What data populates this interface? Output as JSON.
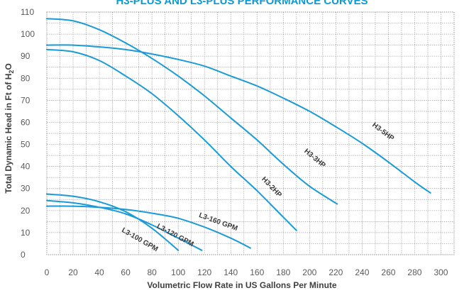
{
  "chart_data": {
    "type": "line",
    "title": "H3-PLUS AND L3-PLUS PERFORMANCE CURVES",
    "xlabel": "Volumetric Flow Rate in US Gallons Per Minute",
    "ylabel_main": "Total Dynamic Head in Ft of H",
    "ylabel_sub": "2",
    "ylabel_tail": "O",
    "xlim": [
      0,
      310
    ],
    "ylim": [
      0,
      110
    ],
    "xticks": [
      "0",
      "20",
      "40",
      "60",
      "80",
      "100",
      "120",
      "140",
      "160",
      "180",
      "200",
      "220",
      "240",
      "260",
      "280",
      "300"
    ],
    "yticks": [
      "0",
      "10",
      "20",
      "30",
      "40",
      "50",
      "60",
      "70",
      "80",
      "90",
      "100",
      "110"
    ],
    "grid": true,
    "curve_color": "#1a9ad7",
    "series": [
      {
        "name": "H3-5HP",
        "x": [
          0,
          20,
          40,
          60,
          80,
          100,
          120,
          140,
          160,
          180,
          200,
          220,
          240,
          260,
          280,
          292
        ],
        "y": [
          95,
          95,
          94.2,
          93,
          91,
          88.5,
          85.5,
          81,
          76.5,
          71,
          65,
          58,
          50.5,
          42,
          33,
          28
        ]
      },
      {
        "name": "H3-3HP",
        "x": [
          0,
          20,
          40,
          60,
          80,
          100,
          120,
          140,
          160,
          180,
          200,
          221
        ],
        "y": [
          107,
          106,
          102,
          96,
          89,
          81,
          72,
          62,
          52,
          41,
          31,
          23
        ]
      },
      {
        "name": "H3-2HP",
        "x": [
          0,
          20,
          40,
          60,
          80,
          100,
          120,
          140,
          160,
          180,
          190
        ],
        "y": [
          93,
          92,
          88,
          81,
          73,
          63,
          52,
          40,
          29,
          17,
          11
        ]
      },
      {
        "name": "L3-160 GPM",
        "x": [
          0,
          20,
          40,
          60,
          80,
          100,
          120,
          140,
          155
        ],
        "y": [
          22,
          22,
          21.5,
          20.5,
          18.8,
          16.5,
          12.5,
          7.5,
          3
        ]
      },
      {
        "name": "L3-120 GPM",
        "x": [
          0,
          20,
          40,
          60,
          80,
          100,
          118
        ],
        "y": [
          24.5,
          23.5,
          21.5,
          18.5,
          13.5,
          7.5,
          2
        ]
      },
      {
        "name": "L3-100 GPM",
        "x": [
          0,
          20,
          40,
          60,
          80,
          100
        ],
        "y": [
          27.5,
          26.5,
          24,
          19.5,
          12,
          2
        ]
      }
    ],
    "labels": [
      {
        "text": "H3-5HP",
        "x": 255,
        "y": 55,
        "angle": 37
      },
      {
        "text": "H3-3HP",
        "x": 203,
        "y": 43,
        "angle": 40
      },
      {
        "text": "H3-2HP",
        "x": 170,
        "y": 30,
        "angle": 46
      },
      {
        "text": "L3-160 GPM",
        "x": 130,
        "y": 14,
        "angle": 20
      },
      {
        "text": "L3-120 GPM",
        "x": 97,
        "y": 8,
        "angle": 28
      },
      {
        "text": "L3-100 GPM",
        "x": 70,
        "y": 6,
        "angle": 30
      }
    ]
  }
}
